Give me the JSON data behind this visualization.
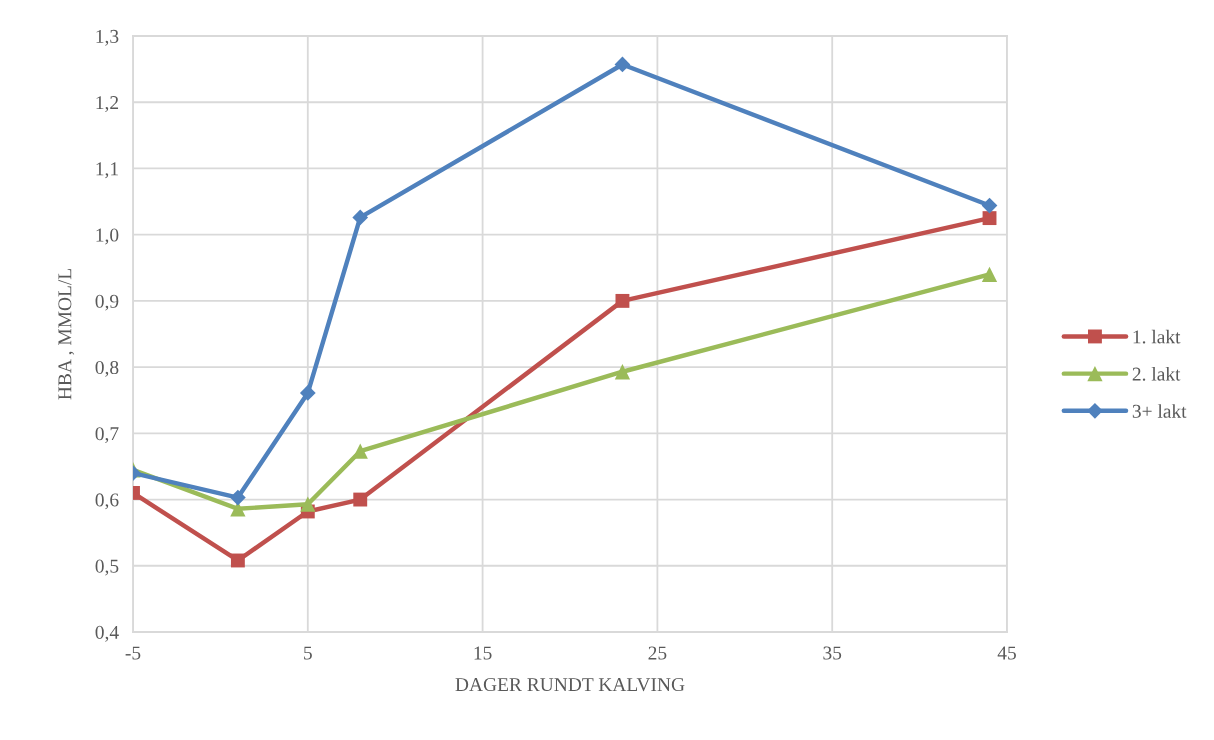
{
  "chart_data": {
    "type": "line",
    "xlabel": "DAGER RUNDT KALVING",
    "ylabel": "HBA , MMOL/L",
    "x": [
      -5,
      1,
      5,
      8,
      23,
      44
    ],
    "series": [
      {
        "name": "1. lakt",
        "color": "#c0504d",
        "marker": "square",
        "values": [
          0.61,
          0.508,
          0.582,
          0.6,
          0.9,
          1.025
        ]
      },
      {
        "name": "2. lakt",
        "color": "#9bbb59",
        "marker": "triangle",
        "values": [
          0.645,
          0.586,
          0.593,
          0.673,
          0.793,
          0.94
        ]
      },
      {
        "name": "3+ lakt",
        "color": "#4f81bd",
        "marker": "diamond",
        "values": [
          0.64,
          0.603,
          0.761,
          1.026,
          1.257,
          1.044
        ]
      }
    ],
    "xlim": [
      -5,
      45
    ],
    "xticks": [
      -5,
      5,
      15,
      25,
      35,
      45
    ],
    "ylim": [
      0.4,
      1.3
    ],
    "yticks": [
      {
        "value": 0.4,
        "label": "0,4"
      },
      {
        "value": 0.5,
        "label": "0,5"
      },
      {
        "value": 0.6,
        "label": "0,6"
      },
      {
        "value": 0.7,
        "label": "0,7"
      },
      {
        "value": 0.8,
        "label": "0,8"
      },
      {
        "value": 0.9,
        "label": "0,9"
      },
      {
        "value": 1.0,
        "label": "1,0"
      },
      {
        "value": 1.1,
        "label": "1,1"
      },
      {
        "value": 1.2,
        "label": "1,2"
      },
      {
        "value": 1.3,
        "label": "1,3"
      }
    ],
    "grid": true,
    "legend": "right",
    "line_style": "solid"
  }
}
